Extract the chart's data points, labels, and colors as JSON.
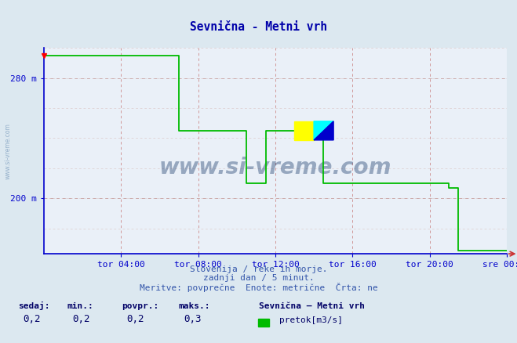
{
  "title": "Sevnična - Metni vrh",
  "bg_color": "#dce8f0",
  "plot_bg_color": "#eaf0f8",
  "line_color": "#00bb00",
  "axis_color": "#0000cc",
  "title_color": "#0000aa",
  "watermark": "www.si-vreme.com",
  "watermark_color": "#1a3a6a",
  "footer_line1": "Slovenija / reke in morje.",
  "footer_line2": "zadnji dan / 5 minut.",
  "footer_line3": "Meritve: povprečne  Enote: metrične  Črta: ne",
  "ylabel_left": "www.si-vreme.com",
  "stats_labels": [
    "sedaj:",
    "min.:",
    "povpr.:",
    "maks.:"
  ],
  "stats_values": [
    "0,2",
    "0,2",
    "0,2",
    "0,3"
  ],
  "legend_name": "Sevnična – Metni vrh",
  "legend_item": "pretok[m3/s]",
  "legend_color": "#00bb00",
  "x_tick_labels": [
    "tor 04:00",
    "tor 08:00",
    "tor 12:00",
    "tor 16:00",
    "tor 20:00",
    "sre 00:00"
  ],
  "x_tick_hours": [
    4,
    8,
    12,
    16,
    20,
    24
  ],
  "yticks": [
    200,
    280
  ],
  "ytick_labels": [
    "200 m",
    "280 m"
  ],
  "ymin": 163,
  "ymax": 300,
  "xmin": 0,
  "xmax": 24,
  "time_data": [
    0,
    0.08,
    7.0,
    7.0,
    10.5,
    10.5,
    11.5,
    11.5,
    12.0,
    12.0,
    13.3,
    13.3,
    14.5,
    14.5,
    21.0,
    21.0,
    21.5,
    21.5,
    24
  ],
  "flow_data": [
    295,
    295,
    295,
    245,
    245,
    210,
    210,
    245,
    245,
    245,
    245,
    245,
    245,
    210,
    210,
    207,
    207,
    165,
    165
  ],
  "vgrid_color": "#cc8888",
  "hgrid_color": "#ccaaaa",
  "hgrid_minor_color": "#ddcccc"
}
